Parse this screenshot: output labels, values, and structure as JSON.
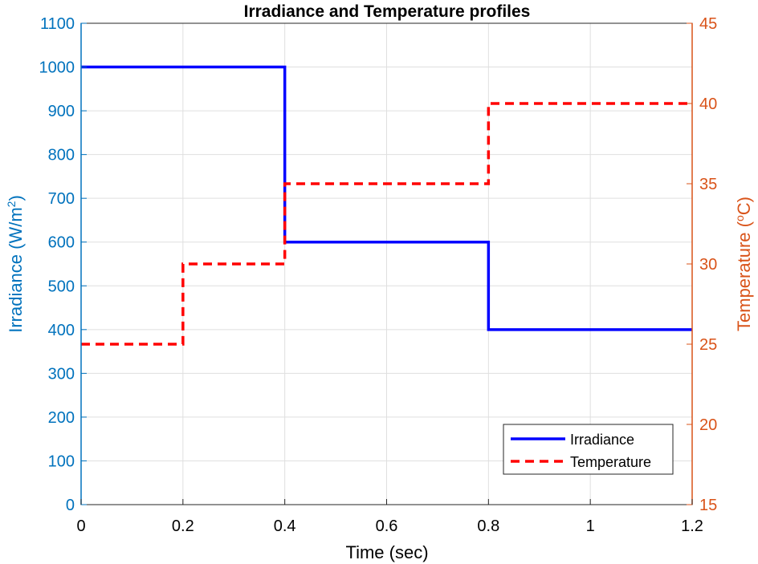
{
  "chart_data": {
    "type": "line",
    "title": "Irradiance and Temperature profiles",
    "xlabel": "Time (sec)",
    "xlim": [
      0,
      1.2
    ],
    "xticks": [
      0,
      0.2,
      0.4,
      0.6,
      0.8,
      1,
      1.2
    ],
    "xtick_labels": [
      "0",
      "0.2",
      "0.4",
      "0.6",
      "0.8",
      "1",
      "1.2"
    ],
    "grid": true,
    "legend_position": "bottom-right",
    "left_axis": {
      "label_text": "Irradiance (W/m",
      "label_superscript": "2",
      "label_close": ")",
      "ylim": [
        0,
        1100
      ],
      "ticks": [
        0,
        100,
        200,
        300,
        400,
        500,
        600,
        700,
        800,
        900,
        1000,
        1100
      ],
      "color": "#0072BD"
    },
    "right_axis": {
      "label_text": "Temperature (",
      "label_superscript": "o",
      "label_close": "C)",
      "ylim": [
        15,
        45
      ],
      "ticks": [
        15,
        20,
        25,
        30,
        35,
        40,
        45
      ],
      "color": "#D95319"
    },
    "series": [
      {
        "name": "Irradiance",
        "axis": "left",
        "color": "#0000FF",
        "style": "solid",
        "x": [
          0,
          0.4,
          0.4,
          0.8,
          0.8,
          1.2
        ],
        "y": [
          1000,
          1000,
          600,
          600,
          400,
          400
        ]
      },
      {
        "name": "Temperature",
        "axis": "right",
        "color": "#FF0000",
        "style": "dashed",
        "x": [
          0,
          0.2,
          0.2,
          0.4,
          0.4,
          0.8,
          0.8,
          1.2
        ],
        "y": [
          25,
          25,
          30,
          30,
          35,
          35,
          40,
          40
        ]
      }
    ]
  }
}
